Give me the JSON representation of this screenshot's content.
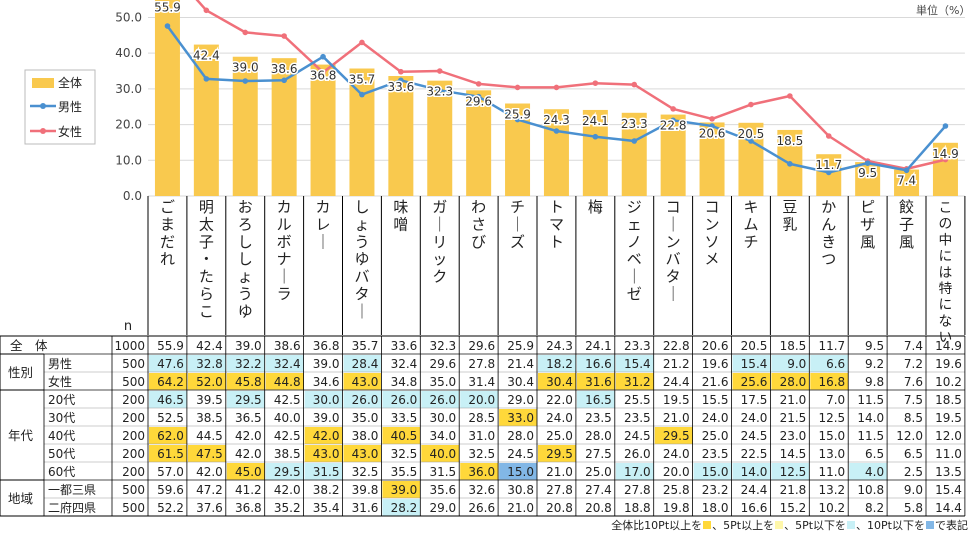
{
  "unit_label": "単位（%）",
  "n_header": "n",
  "footnote": {
    "prefix": "全体比10Pt以上を",
    "mid1": "、5Pt以上を",
    "mid2": "、5Pt以下を",
    "mid3": "、10Pt以下を",
    "suffix": "で表記"
  },
  "colors": {
    "bar": "#F9C94E",
    "male": "#4A90D0",
    "female": "#F0707A",
    "plus10": "#FFD83A",
    "plus5": "#FFF7AA",
    "minus5": "#C8F0F6",
    "minus10": "#82B7E6"
  },
  "chart_data": {
    "type": "bar",
    "ylim": [
      0,
      70
    ],
    "yticks": [
      "0.0",
      "10.0",
      "20.0",
      "30.0",
      "40.0",
      "50.0",
      "60.0",
      "70.0"
    ],
    "categories": [
      "ごまだれ",
      "明太子・たらこ",
      "おろししょうゆ",
      "カルボナーラ",
      "カレー",
      "しょうゆバター",
      "味噌",
      "ガーリック",
      "わさび",
      "チーズ",
      "トマト",
      "梅",
      "ジェノベーゼ",
      "コーンバター",
      "コンソメ",
      "キムチ",
      "豆乳",
      "かんきつ",
      "ピザ風",
      "餃子風",
      "この中には特にない"
    ],
    "series": [
      {
        "name": "全体",
        "type": "bar",
        "values": [
          55.9,
          42.4,
          39.0,
          38.6,
          36.8,
          35.7,
          33.6,
          32.3,
          29.6,
          25.9,
          24.3,
          24.1,
          23.3,
          22.8,
          20.6,
          20.5,
          18.5,
          11.7,
          9.5,
          7.4,
          14.9
        ]
      },
      {
        "name": "男性",
        "type": "line",
        "values": [
          47.6,
          32.8,
          32.2,
          32.4,
          39.0,
          28.4,
          32.4,
          29.6,
          27.8,
          21.4,
          18.2,
          16.6,
          15.4,
          21.2,
          19.6,
          15.4,
          9.0,
          6.6,
          9.2,
          7.2,
          19.6
        ]
      },
      {
        "name": "女性",
        "type": "line",
        "values": [
          64.2,
          52.0,
          45.8,
          44.8,
          34.6,
          43.0,
          34.8,
          35.0,
          31.4,
          30.4,
          30.4,
          31.6,
          31.2,
          24.4,
          21.6,
          25.6,
          28.0,
          16.8,
          9.8,
          7.6,
          10.2
        ]
      }
    ],
    "legend": "top-left"
  },
  "table": {
    "rows": [
      {
        "group": "全　体",
        "label": "",
        "n": "1000",
        "values": [
          "55.9",
          "42.4",
          "39.0",
          "38.6",
          "36.8",
          "35.7",
          "33.6",
          "32.3",
          "29.6",
          "25.9",
          "24.3",
          "24.1",
          "23.3",
          "22.8",
          "20.6",
          "20.5",
          "18.5",
          "11.7",
          "9.5",
          "7.4",
          "14.9"
        ],
        "marks": [
          0,
          0,
          0,
          0,
          0,
          0,
          0,
          0,
          0,
          0,
          0,
          0,
          0,
          0,
          0,
          0,
          0,
          0,
          0,
          0,
          0
        ]
      },
      {
        "group": "性別",
        "label": "男性",
        "n": "500",
        "values": [
          "47.6",
          "32.8",
          "32.2",
          "32.4",
          "39.0",
          "28.4",
          "32.4",
          "29.6",
          "27.8",
          "21.4",
          "18.2",
          "16.6",
          "15.4",
          "21.2",
          "19.6",
          "15.4",
          "9.0",
          "6.6",
          "9.2",
          "7.2",
          "19.6"
        ],
        "marks": [
          -1,
          -1,
          -1,
          -1,
          0,
          -1,
          0,
          0,
          0,
          0,
          -1,
          -1,
          -1,
          0,
          0,
          -1,
          -1,
          -1,
          0,
          0,
          0
        ]
      },
      {
        "group": "",
        "label": "女性",
        "n": "500",
        "values": [
          "64.2",
          "52.0",
          "45.8",
          "44.8",
          "34.6",
          "43.0",
          "34.8",
          "35.0",
          "31.4",
          "30.4",
          "30.4",
          "31.6",
          "31.2",
          "24.4",
          "21.6",
          "25.6",
          "28.0",
          "16.8",
          "9.8",
          "7.6",
          "10.2"
        ],
        "marks": [
          1,
          1,
          1,
          1,
          0,
          1,
          0,
          0,
          0,
          0,
          1,
          1,
          1,
          0,
          0,
          1,
          1,
          1,
          0,
          0,
          0
        ]
      },
      {
        "group": "年代",
        "label": "20代",
        "n": "200",
        "values": [
          "46.5",
          "39.5",
          "29.5",
          "42.5",
          "30.0",
          "26.0",
          "26.0",
          "26.0",
          "20.0",
          "29.0",
          "22.0",
          "16.5",
          "25.5",
          "19.5",
          "15.5",
          "17.5",
          "21.0",
          "7.0",
          "11.5",
          "7.5",
          "18.5"
        ],
        "marks": [
          -1,
          0,
          -1,
          0,
          -1,
          -1,
          -1,
          -1,
          -1,
          0,
          0,
          -1,
          0,
          0,
          0,
          0,
          0,
          0,
          0,
          0,
          0
        ]
      },
      {
        "group": "",
        "label": "30代",
        "n": "200",
        "values": [
          "52.5",
          "38.5",
          "36.5",
          "40.0",
          "39.0",
          "35.0",
          "33.5",
          "30.0",
          "28.5",
          "33.0",
          "24.0",
          "23.5",
          "23.5",
          "21.0",
          "24.0",
          "24.0",
          "21.5",
          "12.5",
          "14.0",
          "8.5",
          "19.5"
        ],
        "marks": [
          0,
          0,
          0,
          0,
          0,
          0,
          0,
          0,
          0,
          1,
          0,
          0,
          0,
          0,
          0,
          0,
          0,
          0,
          0,
          0,
          0
        ]
      },
      {
        "group": "",
        "label": "40代",
        "n": "200",
        "values": [
          "62.0",
          "44.5",
          "42.0",
          "42.5",
          "42.0",
          "38.0",
          "40.5",
          "34.0",
          "31.0",
          "28.0",
          "25.0",
          "28.0",
          "24.5",
          "29.5",
          "25.0",
          "24.5",
          "23.0",
          "15.0",
          "11.5",
          "12.0",
          "12.0"
        ],
        "marks": [
          1,
          0,
          0,
          0,
          1,
          0,
          1,
          0,
          0,
          0,
          0,
          0,
          0,
          1,
          0,
          0,
          0,
          0,
          0,
          0,
          0
        ]
      },
      {
        "group": "",
        "label": "50代",
        "n": "200",
        "values": [
          "61.5",
          "47.5",
          "42.0",
          "38.5",
          "43.0",
          "43.0",
          "32.5",
          "40.0",
          "32.5",
          "24.5",
          "29.5",
          "27.5",
          "26.0",
          "24.0",
          "23.5",
          "22.5",
          "14.5",
          "13.0",
          "6.5",
          "6.5",
          "11.0"
        ],
        "marks": [
          1,
          1,
          0,
          0,
          1,
          1,
          0,
          1,
          0,
          0,
          1,
          0,
          0,
          0,
          0,
          0,
          0,
          0,
          0,
          0,
          0
        ]
      },
      {
        "group": "",
        "label": "60代",
        "n": "200",
        "values": [
          "57.0",
          "42.0",
          "45.0",
          "29.5",
          "31.5",
          "32.5",
          "35.5",
          "31.5",
          "36.0",
          "15.0",
          "21.0",
          "25.0",
          "17.0",
          "20.0",
          "15.0",
          "14.0",
          "12.5",
          "11.0",
          "4.0",
          "2.5",
          "13.5"
        ],
        "marks": [
          0,
          0,
          1,
          -1,
          -1,
          0,
          0,
          0,
          1,
          -2,
          0,
          0,
          -1,
          0,
          -1,
          -1,
          -1,
          0,
          -1,
          0,
          0
        ]
      },
      {
        "group": "地域",
        "label": "一都三県",
        "n": "500",
        "values": [
          "59.6",
          "47.2",
          "41.2",
          "42.0",
          "38.2",
          "39.8",
          "39.0",
          "35.6",
          "32.6",
          "30.8",
          "27.8",
          "27.4",
          "27.8",
          "25.8",
          "23.2",
          "24.4",
          "21.8",
          "13.2",
          "10.8",
          "9.0",
          "15.4"
        ],
        "marks": [
          0,
          0,
          0,
          0,
          0,
          0,
          1,
          0,
          0,
          0,
          0,
          0,
          0,
          0,
          0,
          0,
          0,
          0,
          0,
          0,
          0
        ]
      },
      {
        "group": "",
        "label": "二府四県",
        "n": "500",
        "values": [
          "52.2",
          "37.6",
          "36.8",
          "35.2",
          "35.4",
          "31.6",
          "28.2",
          "29.0",
          "26.6",
          "21.0",
          "20.8",
          "20.8",
          "18.8",
          "19.8",
          "18.0",
          "16.6",
          "15.2",
          "10.2",
          "8.2",
          "5.8",
          "14.4"
        ],
        "marks": [
          0,
          0,
          0,
          0,
          0,
          0,
          -1,
          0,
          0,
          0,
          0,
          0,
          0,
          0,
          0,
          0,
          0,
          0,
          0,
          0,
          0
        ]
      }
    ]
  }
}
